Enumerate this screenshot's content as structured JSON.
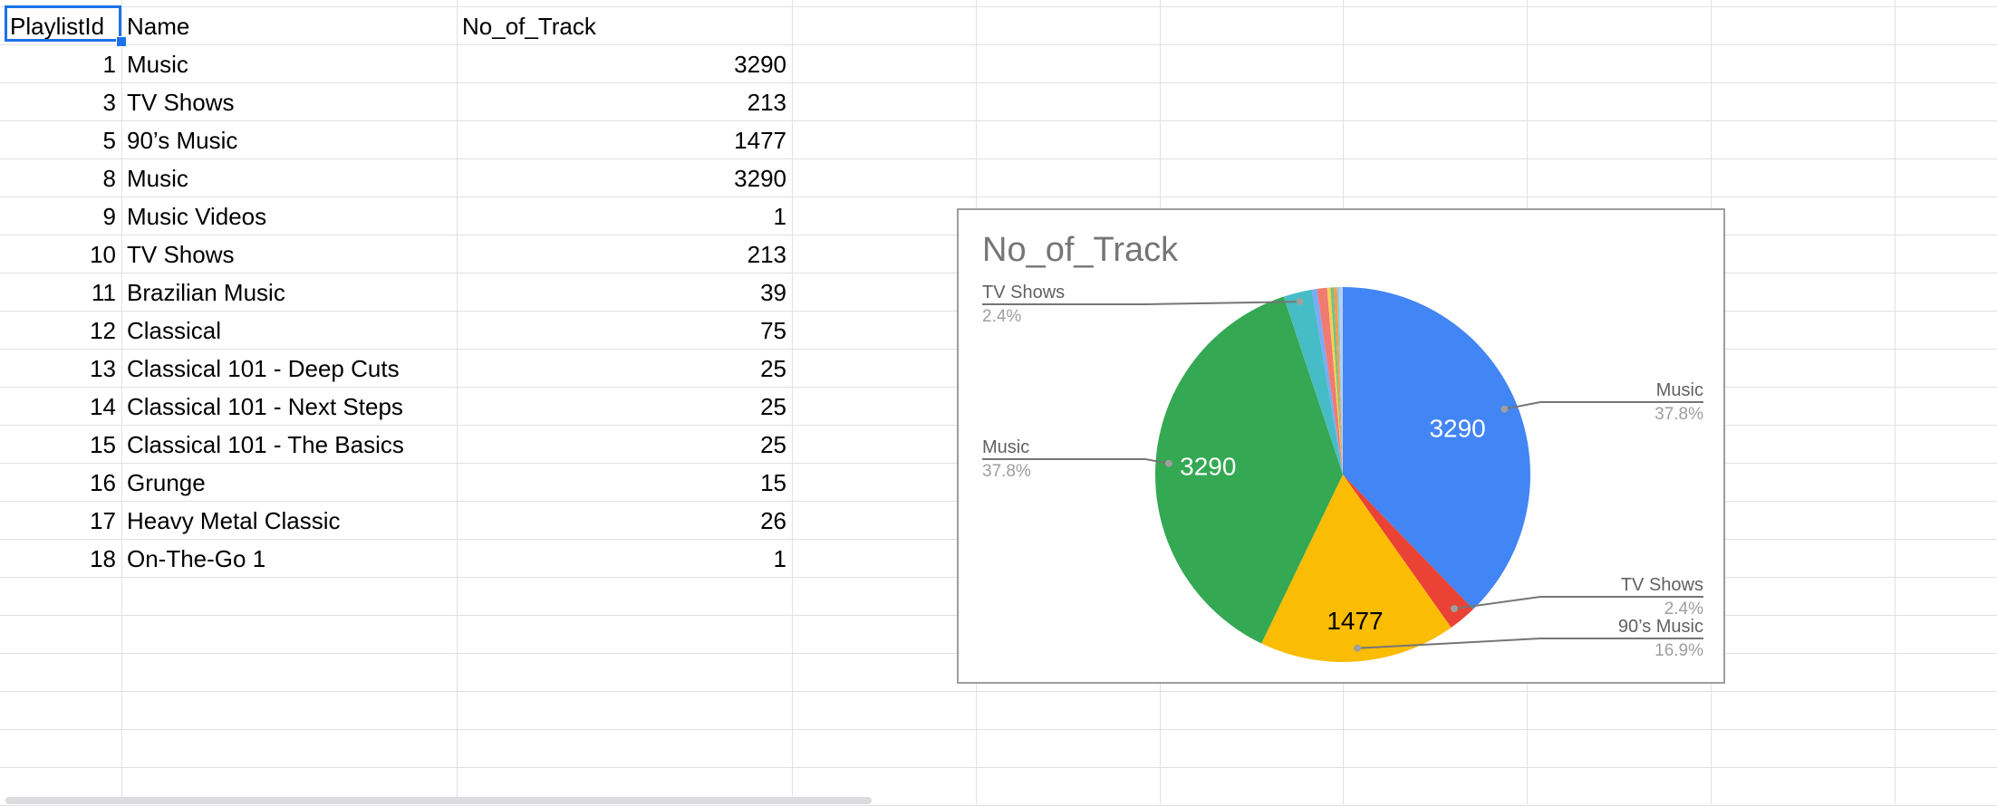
{
  "table": {
    "headers": [
      "PlaylistId",
      "Name",
      "No_of_Track"
    ],
    "rows": [
      {
        "id": "1",
        "name": "Music",
        "tracks": "3290"
      },
      {
        "id": "3",
        "name": "TV Shows",
        "tracks": "213"
      },
      {
        "id": "5",
        "name": "90’s Music",
        "tracks": "1477"
      },
      {
        "id": "8",
        "name": "Music",
        "tracks": "3290"
      },
      {
        "id": "9",
        "name": "Music Videos",
        "tracks": "1"
      },
      {
        "id": "10",
        "name": "TV Shows",
        "tracks": "213"
      },
      {
        "id": "11",
        "name": "Brazilian Music",
        "tracks": "39"
      },
      {
        "id": "12",
        "name": "Classical",
        "tracks": "75"
      },
      {
        "id": "13",
        "name": "Classical 101 - Deep Cuts",
        "tracks": "25"
      },
      {
        "id": "14",
        "name": "Classical 101 - Next Steps",
        "tracks": "25"
      },
      {
        "id": "15",
        "name": "Classical 101 - The Basics",
        "tracks": "25"
      },
      {
        "id": "16",
        "name": "Grunge",
        "tracks": "15"
      },
      {
        "id": "17",
        "name": "Heavy Metal Classic",
        "tracks": "26"
      },
      {
        "id": "18",
        "name": "On-The-Go 1",
        "tracks": "1"
      }
    ]
  },
  "chart_data": {
    "type": "pie",
    "title": "No_of_Track",
    "categories": [
      "Music",
      "TV Shows",
      "90’s Music",
      "Music",
      "Music Videos",
      "TV Shows",
      "Brazilian Music",
      "Classical",
      "Classical 101 - Deep Cuts",
      "Classical 101 - Next Steps",
      "Classical 101 - The Basics",
      "Grunge",
      "Heavy Metal Classic",
      "On-The-Go 1"
    ],
    "values": [
      3290,
      213,
      1477,
      3290,
      1,
      213,
      39,
      75,
      25,
      25,
      25,
      15,
      26,
      1
    ],
    "colors": [
      "#4285f4",
      "#ea4335",
      "#fbbc04",
      "#34a853",
      "#ff6d01",
      "#46bdc6",
      "#7baaf7",
      "#f07b72",
      "#fcd04f",
      "#71c287",
      "#ff994d",
      "#7ed1d7",
      "#b3cefb",
      "#f7b4ae"
    ],
    "labels": [
      {
        "name": "Music",
        "percent": "37.8%",
        "slice": 0,
        "side": "right"
      },
      {
        "name": "TV Shows",
        "percent": "2.4%",
        "slice": 1,
        "side": "right"
      },
      {
        "name": "90’s Music",
        "percent": "16.9%",
        "slice": 2,
        "side": "right"
      },
      {
        "name": "Music",
        "percent": "37.8%",
        "slice": 3,
        "side": "left"
      },
      {
        "name": "TV Shows",
        "percent": "2.4%",
        "slice": 5,
        "side": "left"
      }
    ],
    "value_labels": [
      {
        "slice": 0,
        "text": "3290"
      },
      {
        "slice": 2,
        "text": "1477"
      },
      {
        "slice": 3,
        "text": "3290"
      }
    ]
  }
}
